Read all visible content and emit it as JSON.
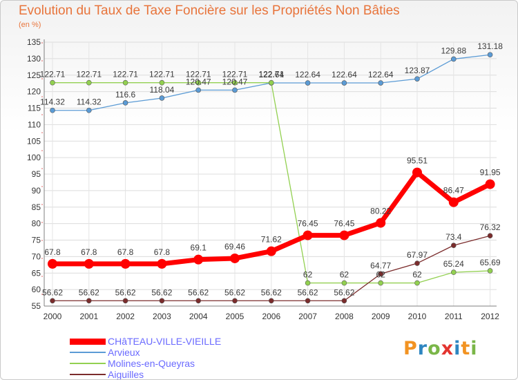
{
  "title": "Evolution du Taux de Taxe Foncière sur les Propriétés Non Bâties",
  "unit": "(en %)",
  "logo": {
    "letters": [
      "P",
      "r",
      "o",
      "x",
      "i",
      "t",
      "i"
    ],
    "colors": [
      "#f29322",
      "#2e86c1",
      "#7ab648",
      "#e3342f",
      "#2e86c1",
      "#f29322",
      "#7ab648"
    ]
  },
  "chart_data": {
    "type": "line",
    "title": "Evolution du Taux de Taxe Foncière sur les Propriétés Non Bâties",
    "ylabel": "(en %)",
    "xlabel": "",
    "ylim": [
      55,
      135
    ],
    "yticks": [
      55,
      60,
      65,
      70,
      75,
      80,
      85,
      90,
      95,
      100,
      105,
      110,
      115,
      120,
      125,
      130,
      135
    ],
    "categories": [
      "2000",
      "2001",
      "2002",
      "2003",
      "2004",
      "2005",
      "2006",
      "2007",
      "2008",
      "2009",
      "2010",
      "2011",
      "2012"
    ],
    "grid": true,
    "legend_position": "bottom-left",
    "series": [
      {
        "name": "CHâTEAU-VILLE-VIEILLE",
        "color": "#ff0000",
        "highlight": true,
        "values": [
          67.8,
          67.8,
          67.8,
          67.8,
          69.1,
          69.46,
          71.62,
          76.45,
          76.45,
          80.22,
          95.51,
          86.47,
          91.95
        ],
        "labels": [
          "67.8",
          "67.8",
          "67.8",
          "67.8",
          "69.1",
          "69.46",
          "71.62",
          "76.45",
          "76.45",
          "80.22",
          "95.51",
          "86.47",
          "91.95"
        ]
      },
      {
        "name": "Arvieux",
        "color": "#5b9bd5",
        "highlight": false,
        "values": [
          114.32,
          114.32,
          116.6,
          118.04,
          120.47,
          120.47,
          122.64,
          122.64,
          122.64,
          122.64,
          123.87,
          129.88,
          131.18
        ],
        "labels": [
          "114.32",
          "114.32",
          "116.6",
          "118.04",
          "120.47",
          "120.47",
          "122.64",
          "122.64",
          "122.64",
          "122.64",
          "123.87",
          "129.88",
          "131.18"
        ]
      },
      {
        "name": "Molines-en-Queyras",
        "color": "#92d050",
        "highlight": false,
        "values": [
          122.71,
          122.71,
          122.71,
          122.71,
          122.71,
          122.71,
          122.71,
          62,
          62,
          62,
          62,
          65.24,
          65.69
        ],
        "labels": [
          "122.71",
          "122.71",
          "122.71",
          "122.71",
          "122.71",
          "122.71",
          "122.71",
          "62",
          "62",
          "62",
          "62",
          "65.24",
          "65.69"
        ]
      },
      {
        "name": "Aiguilles",
        "color": "#7b2c2c",
        "highlight": false,
        "values": [
          56.62,
          56.62,
          56.62,
          56.62,
          56.62,
          56.62,
          56.62,
          56.62,
          56.62,
          64.77,
          67.97,
          73.4,
          76.32
        ],
        "labels": [
          "56.62",
          "56.62",
          "56.62",
          "56.62",
          "56.62",
          "56.62",
          "56.62",
          "56.62",
          "56.62",
          "64.77",
          "67.97",
          "73.4",
          "76.32"
        ]
      }
    ]
  }
}
